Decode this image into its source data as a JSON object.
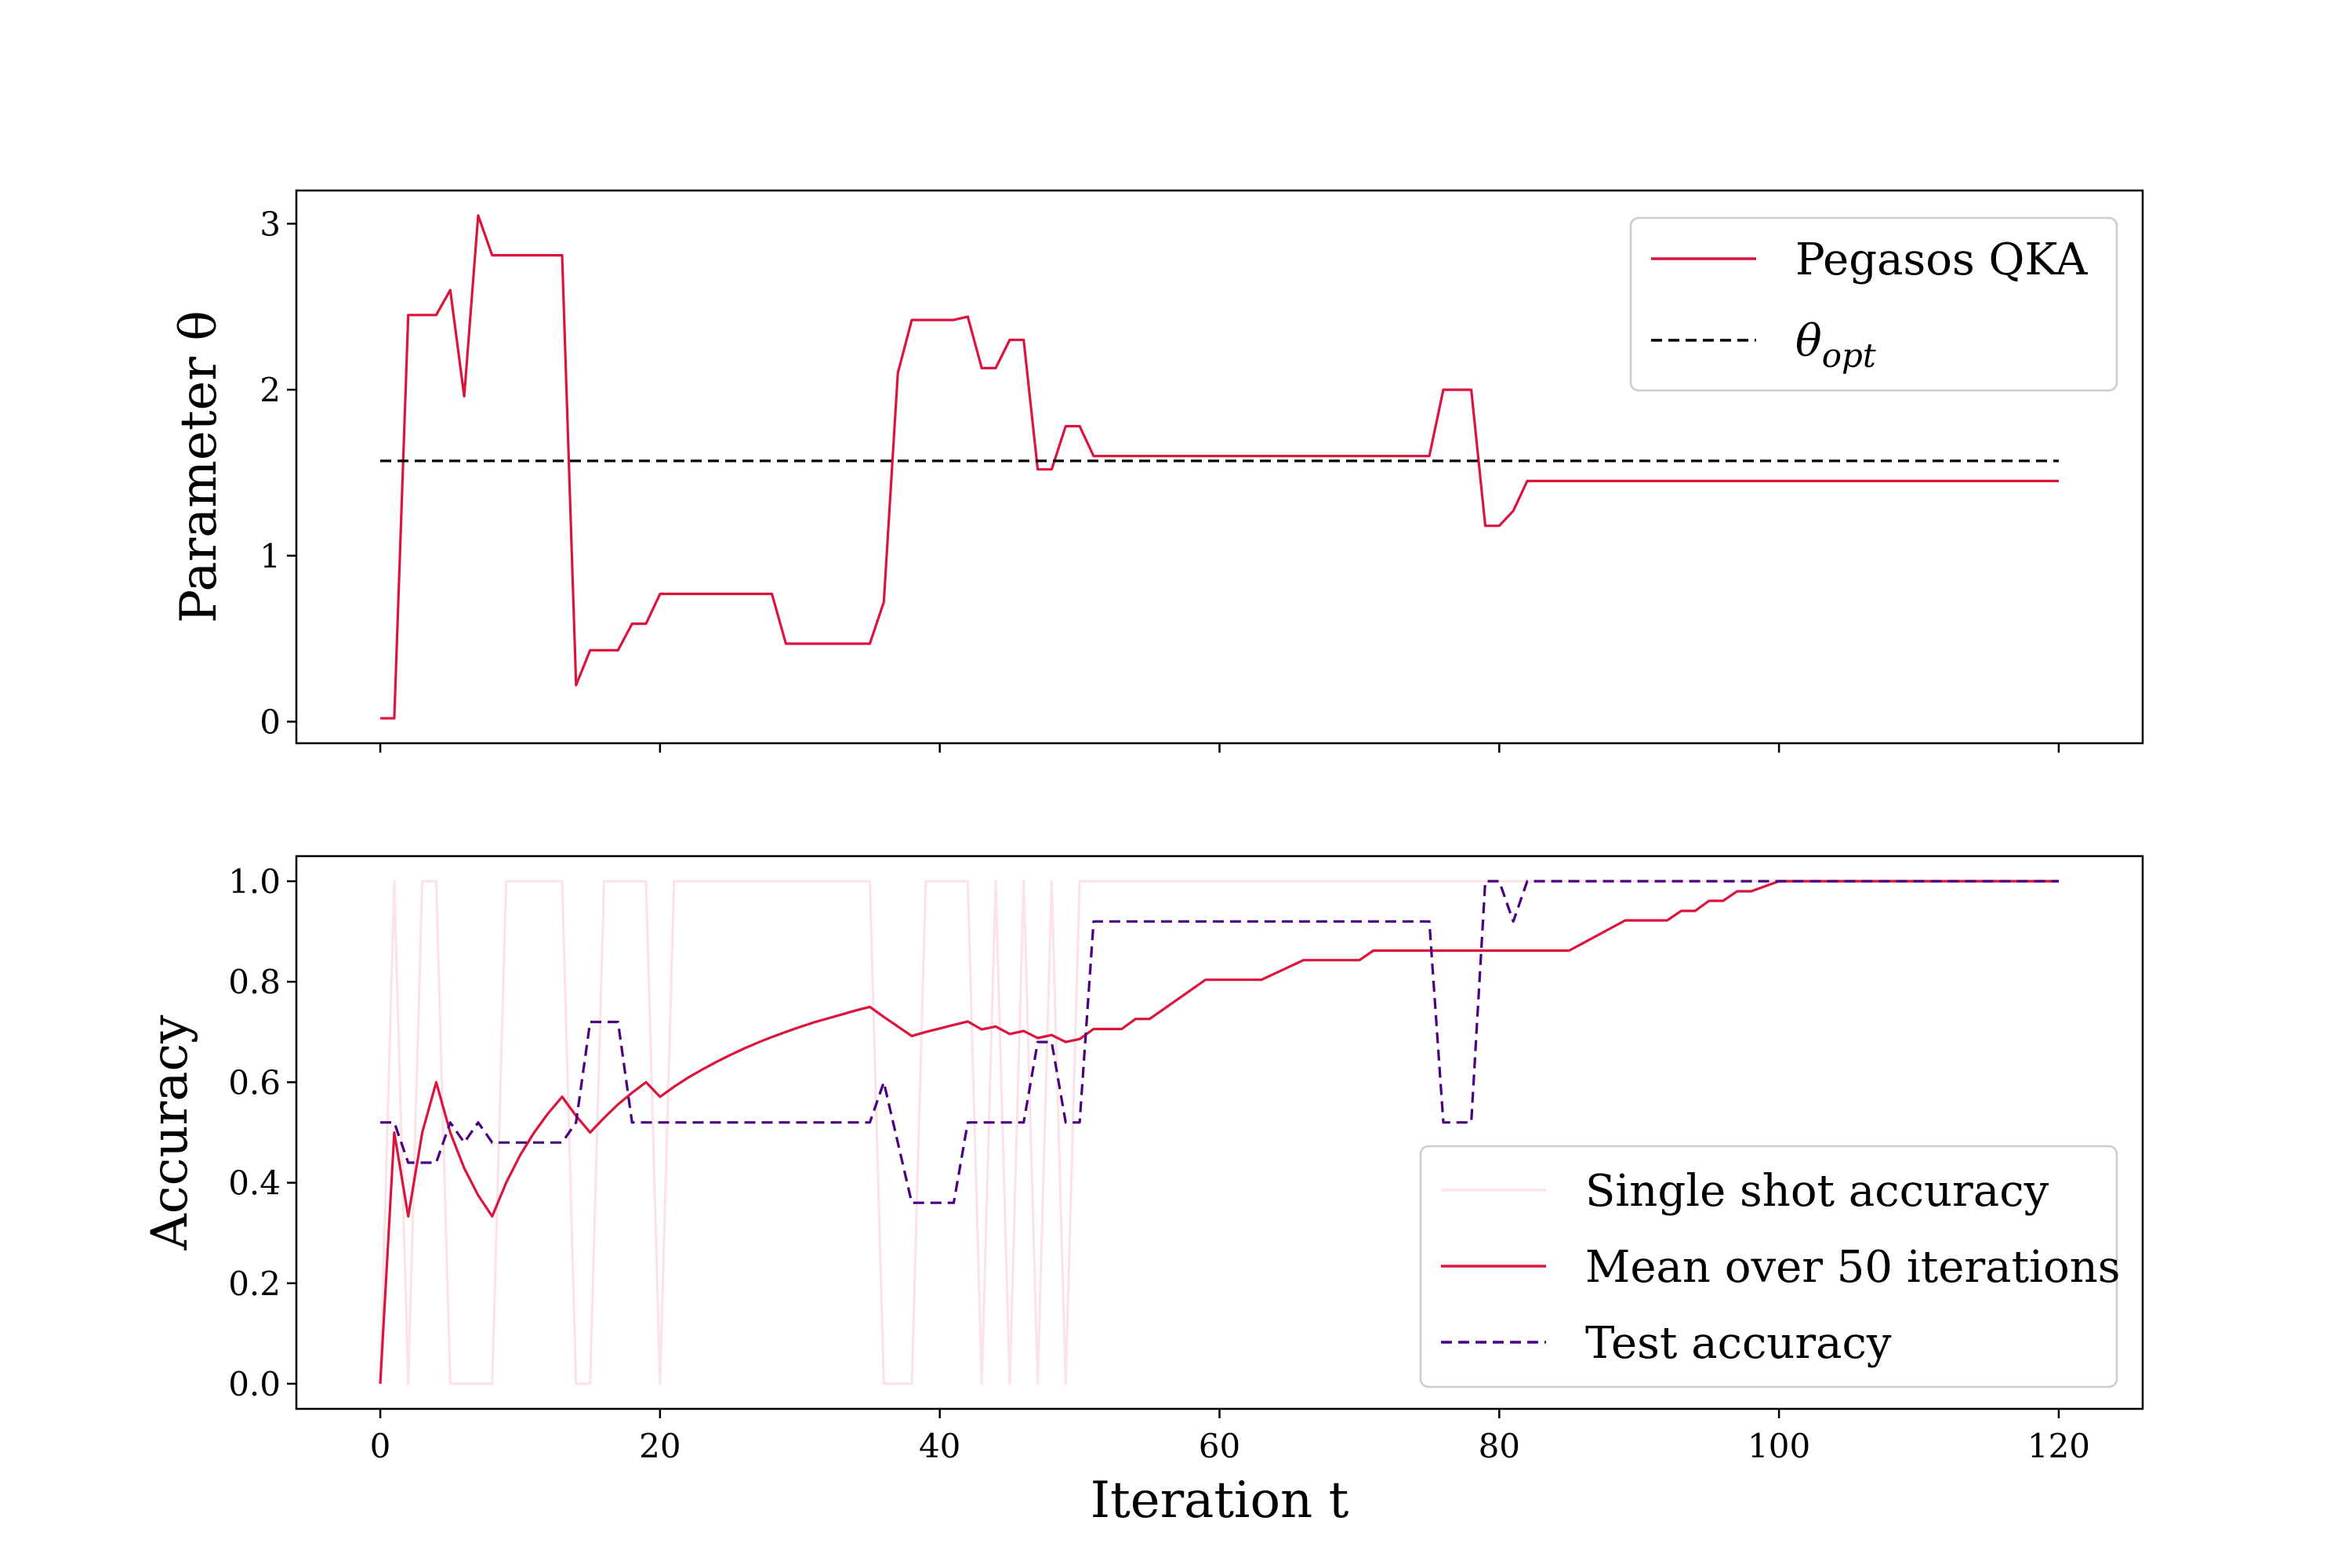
{
  "chart_data": [
    {
      "type": "line",
      "title": "",
      "ylabel": "Parameter θ",
      "xlabel": "",
      "xlim": [
        -6,
        126
      ],
      "ylim": [
        -0.13,
        3.2
      ],
      "x_ticks": [
        0,
        20,
        40,
        60,
        80,
        100,
        120
      ],
      "x_tick_labels_visible": false,
      "y_ticks": [
        0,
        1,
        2,
        3
      ],
      "y_tick_labels": [
        "0",
        "1",
        "2",
        "3"
      ],
      "legend": {
        "position": "upper-right",
        "entries": [
          "Pegasos QKA",
          "θ_opt"
        ]
      },
      "series": [
        {
          "name": "Pegasos QKA",
          "color": "#dc143c",
          "style": "solid",
          "points": [
            [
              0,
              0.02
            ],
            [
              1,
              0.02
            ],
            [
              2,
              2.45
            ],
            [
              3,
              2.45
            ],
            [
              4,
              2.45
            ],
            [
              5,
              2.6
            ],
            [
              6,
              1.96
            ],
            [
              7,
              3.05
            ],
            [
              8,
              2.81
            ],
            [
              9,
              2.81
            ],
            [
              13,
              2.81
            ],
            [
              14,
              0.22
            ],
            [
              15,
              0.43
            ],
            [
              16,
              0.43
            ],
            [
              17,
              0.43
            ],
            [
              18,
              0.59
            ],
            [
              19,
              0.59
            ],
            [
              20,
              0.77
            ],
            [
              28,
              0.77
            ],
            [
              29,
              0.47
            ],
            [
              35,
              0.47
            ],
            [
              36,
              0.72
            ],
            [
              37,
              2.1
            ],
            [
              38,
              2.42
            ],
            [
              41,
              2.42
            ],
            [
              42,
              2.44
            ],
            [
              43,
              2.13
            ],
            [
              44,
              2.13
            ],
            [
              45,
              2.3
            ],
            [
              46,
              2.3
            ],
            [
              47,
              1.52
            ],
            [
              48,
              1.52
            ],
            [
              49,
              1.78
            ],
            [
              50,
              1.78
            ],
            [
              51,
              1.6
            ],
            [
              75,
              1.6
            ],
            [
              76,
              2.0
            ],
            [
              78,
              2.0
            ],
            [
              79,
              1.18
            ],
            [
              80,
              1.18
            ],
            [
              81,
              1.27
            ],
            [
              82,
              1.45
            ],
            [
              120,
              1.45
            ]
          ]
        },
        {
          "name": "θ_opt",
          "color": "#000000",
          "style": "dashed",
          "points": [
            [
              0,
              1.571
            ],
            [
              120,
              1.571
            ]
          ]
        }
      ]
    },
    {
      "type": "line",
      "title": "",
      "xlabel": "Iteration t",
      "ylabel": "Accuracy",
      "xlim": [
        -6,
        126
      ],
      "ylim": [
        -0.05,
        1.05
      ],
      "x_ticks": [
        0,
        20,
        40,
        60,
        80,
        100,
        120
      ],
      "x_tick_labels": [
        "0",
        "20",
        "40",
        "60",
        "80",
        "100",
        "120"
      ],
      "y_ticks": [
        0.0,
        0.2,
        0.4,
        0.6,
        0.8,
        1.0
      ],
      "y_tick_labels": [
        "0.0",
        "0.2",
        "0.4",
        "0.6",
        "0.8",
        "1.0"
      ],
      "legend": {
        "position": "lower-right",
        "entries": [
          "Single shot accuracy",
          "Mean over 50 iterations",
          "Test accuracy"
        ]
      },
      "series": [
        {
          "name": "Single shot accuracy",
          "color": "#fbe3e6",
          "style": "solid",
          "points": [
            [
              0,
              0
            ],
            [
              1,
              1
            ],
            [
              2,
              0
            ],
            [
              3,
              1
            ],
            [
              4,
              1
            ],
            [
              5,
              0
            ],
            [
              8,
              0
            ],
            [
              9,
              1
            ],
            [
              13,
              1
            ],
            [
              14,
              0
            ],
            [
              15,
              0
            ],
            [
              16,
              1
            ],
            [
              19,
              1
            ],
            [
              20,
              0
            ],
            [
              21,
              1
            ],
            [
              35,
              1
            ],
            [
              36,
              0
            ],
            [
              38,
              0
            ],
            [
              39,
              1
            ],
            [
              42,
              1
            ],
            [
              43,
              0
            ],
            [
              44,
              1
            ],
            [
              45,
              0
            ],
            [
              46,
              1
            ],
            [
              47,
              0
            ],
            [
              48,
              1
            ],
            [
              49,
              0
            ],
            [
              50,
              1
            ],
            [
              120,
              1
            ]
          ]
        },
        {
          "name": "Mean over 50 iterations",
          "color": "#dc143c",
          "style": "solid",
          "points": [
            [
              0,
              0
            ],
            [
              1,
              0.5
            ],
            [
              2,
              0.333
            ],
            [
              3,
              0.5
            ],
            [
              4,
              0.6
            ],
            [
              5,
              0.5
            ],
            [
              6,
              0.429
            ],
            [
              7,
              0.375
            ],
            [
              8,
              0.333
            ],
            [
              9,
              0.4
            ],
            [
              10,
              0.455
            ],
            [
              11,
              0.5
            ],
            [
              12,
              0.538
            ],
            [
              13,
              0.571
            ],
            [
              14,
              0.533
            ],
            [
              15,
              0.5
            ],
            [
              16,
              0.529
            ],
            [
              17,
              0.556
            ],
            [
              18,
              0.579
            ],
            [
              19,
              0.6
            ],
            [
              20,
              0.571
            ],
            [
              21,
              0.591
            ],
            [
              22,
              0.609
            ],
            [
              23,
              0.625
            ],
            [
              24,
              0.64
            ],
            [
              25,
              0.654
            ],
            [
              26,
              0.667
            ],
            [
              27,
              0.679
            ],
            [
              28,
              0.69
            ],
            [
              29,
              0.7
            ],
            [
              30,
              0.71
            ],
            [
              31,
              0.719
            ],
            [
              32,
              0.727
            ],
            [
              33,
              0.735
            ],
            [
              34,
              0.743
            ],
            [
              35,
              0.75
            ],
            [
              36,
              0.73
            ],
            [
              37,
              0.711
            ],
            [
              38,
              0.692
            ],
            [
              39,
              0.7
            ],
            [
              40,
              0.707
            ],
            [
              41,
              0.714
            ],
            [
              42,
              0.721
            ],
            [
              43,
              0.705
            ],
            [
              44,
              0.711
            ],
            [
              45,
              0.696
            ],
            [
              46,
              0.702
            ],
            [
              47,
              0.688
            ],
            [
              48,
              0.694
            ],
            [
              49,
              0.68
            ],
            [
              50,
              0.686
            ],
            [
              51,
              0.706
            ],
            [
              53,
              0.706
            ],
            [
              54,
              0.726
            ],
            [
              55,
              0.726
            ],
            [
              59,
              0.804
            ],
            [
              63,
              0.804
            ],
            [
              66,
              0.843
            ],
            [
              70,
              0.843
            ],
            [
              71,
              0.862
            ],
            [
              85,
              0.862
            ],
            [
              89,
              0.922
            ],
            [
              92,
              0.922
            ],
            [
              93,
              0.941
            ],
            [
              94,
              0.941
            ],
            [
              95,
              0.961
            ],
            [
              96,
              0.961
            ],
            [
              97,
              0.98
            ],
            [
              98,
              0.98
            ],
            [
              100,
              1.0
            ],
            [
              120,
              1.0
            ]
          ]
        },
        {
          "name": "Test accuracy",
          "color": "#4b0082",
          "style": "dashed",
          "points": [
            [
              0,
              0.52
            ],
            [
              1,
              0.52
            ],
            [
              2,
              0.44
            ],
            [
              3,
              0.44
            ],
            [
              4,
              0.44
            ],
            [
              5,
              0.52
            ],
            [
              6,
              0.48
            ],
            [
              7,
              0.52
            ],
            [
              8,
              0.48
            ],
            [
              13,
              0.48
            ],
            [
              14,
              0.52
            ],
            [
              15,
              0.72
            ],
            [
              17,
              0.72
            ],
            [
              18,
              0.52
            ],
            [
              35,
              0.52
            ],
            [
              36,
              0.6
            ],
            [
              38,
              0.36
            ],
            [
              41,
              0.36
            ],
            [
              42,
              0.52
            ],
            [
              46,
              0.52
            ],
            [
              47,
              0.68
            ],
            [
              48,
              0.68
            ],
            [
              49,
              0.52
            ],
            [
              50,
              0.52
            ],
            [
              51,
              0.92
            ],
            [
              75,
              0.92
            ],
            [
              76,
              0.52
            ],
            [
              78,
              0.52
            ],
            [
              79,
              1.0
            ],
            [
              80,
              1.0
            ],
            [
              81,
              0.92
            ],
            [
              82,
              1.0
            ],
            [
              120,
              1.0
            ]
          ]
        }
      ]
    }
  ]
}
